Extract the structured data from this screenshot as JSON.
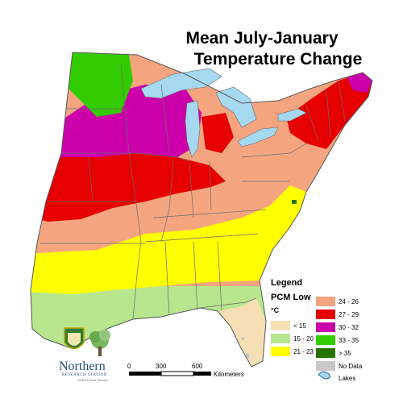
{
  "title_line1": "Mean July-January",
  "title_line2": "Temperature Change",
  "legend": {
    "title": "Legend",
    "subtitle": "PCM Low",
    "unit": "°C",
    "items": [
      {
        "label": "< 15",
        "color": "#f7dfb5"
      },
      {
        "label": "15 - 20",
        "color": "#b8e68f"
      },
      {
        "label": "21 - 23",
        "color": "#ffff00"
      },
      {
        "label": "24 - 26",
        "color": "#f4a580"
      },
      {
        "label": "27 - 29",
        "color": "#e60000"
      },
      {
        "label": "30 - 32",
        "color": "#cc00aa"
      },
      {
        "label": "33 - 35",
        "color": "#33cc00"
      },
      {
        "label": "> 35",
        "color": "#267300"
      },
      {
        "label": "No Data",
        "color": "#c8c8c8"
      },
      {
        "label": "Lakes",
        "color": "#a6d8f0"
      }
    ]
  },
  "scale": {
    "ticks": [
      "0",
      "300",
      "600"
    ],
    "unit_label": "Kilometers"
  },
  "logo": {
    "name": "Northern",
    "station": "RESEARCH STATION",
    "agency": "USDA Forest Service",
    "shield_text": "U S"
  },
  "colors": {
    "border": "#555555",
    "state_lines": "#6b6b6b",
    "lake": "#a6d8f0"
  }
}
